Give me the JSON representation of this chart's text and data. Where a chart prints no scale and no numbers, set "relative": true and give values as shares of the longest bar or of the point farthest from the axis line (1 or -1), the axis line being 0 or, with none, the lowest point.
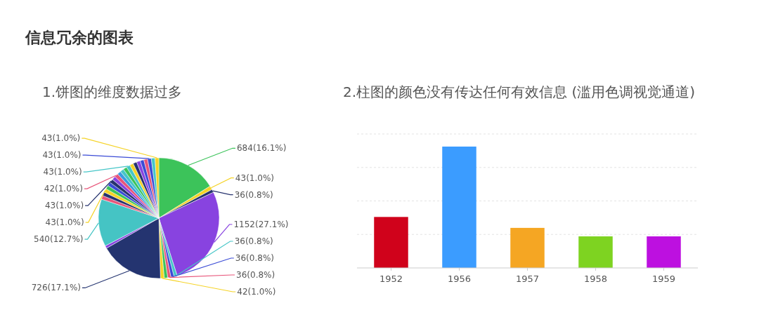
{
  "chart_data": [
    {
      "type": "pie",
      "title": "1.饼图的维度数据过多",
      "annotations": [
        "信息冗余的图表"
      ],
      "categories": [
        null,
        null,
        null,
        null,
        null,
        null,
        null,
        null,
        null,
        null,
        null,
        null,
        null,
        null,
        null,
        null,
        null,
        null,
        null,
        null,
        null,
        null,
        null,
        null,
        null,
        null,
        null,
        null,
        null,
        null,
        null,
        null
      ],
      "values": [
        684,
        43,
        36,
        1152,
        36,
        36,
        36,
        40,
        42,
        726,
        30,
        540,
        42,
        42,
        43,
        42,
        42,
        43,
        42,
        42,
        42,
        42,
        42,
        43,
        42,
        42,
        42,
        42,
        42,
        43,
        42,
        43
      ],
      "value_labels": [
        "684(16.1%)",
        "43(1.0%)",
        "36(0.8%)",
        "1152(27.1%)",
        "36(0.8%)",
        "36(0.8%)",
        "36(0.8%)",
        null,
        "42(1.0%)",
        "726(17.1%)",
        null,
        "540(12.7%)",
        null,
        null,
        "43(1.0%)",
        null,
        null,
        "43(1.0%)",
        null,
        "42(1.0%)",
        null,
        null,
        null,
        "43(1.0%)",
        null,
        null,
        null,
        null,
        null,
        "43(1.0%)",
        null,
        "43(1.0%)"
      ],
      "colors": [
        "#3cc35a",
        "#f5d327",
        "#26336e",
        "#8843e0",
        "#46c6c8",
        "#3a4bd6",
        "#e8557a",
        "#3cc35a",
        "#f5d327",
        "#243470",
        "#8843e0",
        "#45c4c4",
        "#e8557a",
        "#26336e",
        "#f5d327",
        "#3cc35a",
        "#3a4bd6",
        "#26336e",
        "#8843e0",
        "#e8557a",
        "#3a9be0",
        "#46c6c8",
        "#3cc35a",
        "#46c6c8",
        "#f5d327",
        "#26336e",
        "#8843e0",
        "#3a4bd6",
        "#e8557a",
        "#3a4bd6",
        "#46c6c8",
        "#f5d327"
      ]
    },
    {
      "type": "bar",
      "title": "2.柱图的颜色没有传达任何有效信息 (滥用色调视觉通道)",
      "relative": true,
      "grid": "y",
      "categories": [
        "1952",
        "1956",
        "1957",
        "1958",
        "1959"
      ],
      "values": [
        0.42,
        1,
        0.33,
        0.26,
        0.26
      ],
      "colors": [
        "#d0021b",
        "#3b9cff",
        "#f5a623",
        "#7ed321",
        "#bd10e0"
      ]
    }
  ]
}
